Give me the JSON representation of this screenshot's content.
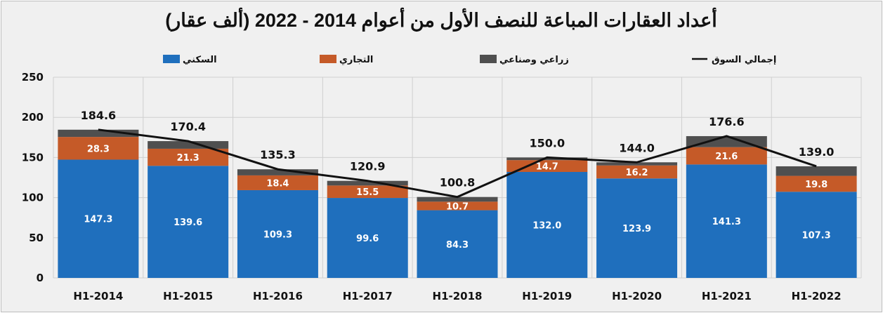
{
  "chart_data": {
    "type": "bar",
    "stacked": true,
    "title": "أعداد العقارات المباعة للنصف الأول من أعوام 2014 - 2022 (ألف عقار)",
    "xlabel": "",
    "ylabel": "",
    "ylim": [
      0,
      250
    ],
    "yticks": [
      0,
      50,
      100,
      150,
      200,
      250
    ],
    "grid": true,
    "legend_position": "top",
    "categories": [
      "H1-2014",
      "H1-2015",
      "H1-2016",
      "H1-2017",
      "H1-2018",
      "H1-2019",
      "H1-2020",
      "H1-2021",
      "H1-2022"
    ],
    "series": [
      {
        "name": "السكني",
        "kind": "bar",
        "color": "#1f6fbd",
        "values": [
          147.3,
          139.6,
          109.3,
          99.6,
          84.3,
          132.0,
          123.9,
          141.3,
          107.3
        ],
        "labels": [
          "147.3",
          "139.6",
          "109.3",
          "99.6",
          "84.3",
          "132.0",
          "123.9",
          "141.3",
          "107.3"
        ]
      },
      {
        "name": "التجاري",
        "kind": "bar",
        "color": "#c55a28",
        "values": [
          28.3,
          21.3,
          18.4,
          15.5,
          10.7,
          14.7,
          16.2,
          21.6,
          19.8
        ],
        "labels": [
          "28.3",
          "21.3",
          "18.4",
          "15.5",
          "10.7",
          "14.7",
          "16.2",
          "21.6",
          "19.8"
        ]
      },
      {
        "name": "زراعي وصناعي",
        "kind": "bar",
        "color": "#4f4f4f",
        "values": [
          9.0,
          9.5,
          7.6,
          5.8,
          5.8,
          3.3,
          3.9,
          13.7,
          11.9
        ]
      },
      {
        "name": "إجمالي السوق",
        "kind": "line",
        "color": "#111111",
        "values": [
          184.6,
          170.4,
          135.3,
          120.9,
          100.8,
          150.0,
          144.0,
          176.6,
          139.0
        ],
        "labels": [
          "184.6",
          "170.4",
          "135.3",
          "120.9",
          "100.8",
          "150.0",
          "144.0",
          "176.6",
          "139.0"
        ]
      }
    ]
  }
}
